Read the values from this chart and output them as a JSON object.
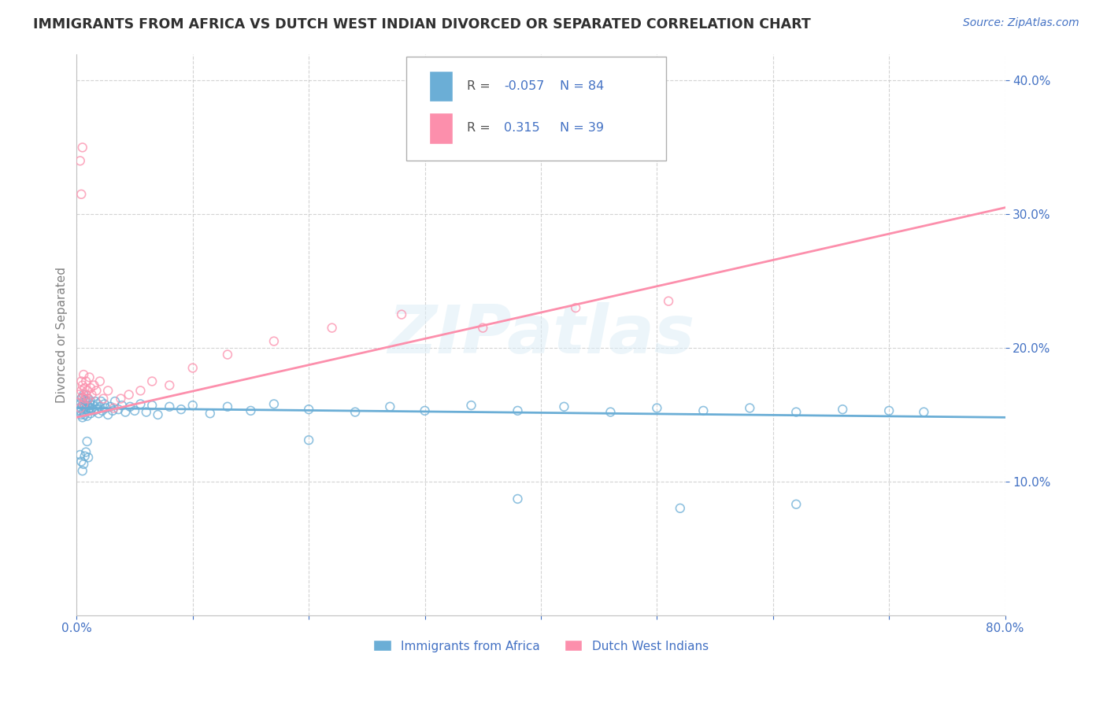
{
  "title": "IMMIGRANTS FROM AFRICA VS DUTCH WEST INDIAN DIVORCED OR SEPARATED CORRELATION CHART",
  "source": "Source: ZipAtlas.com",
  "ylabel": "Divorced or Separated",
  "legend_label1": "Immigrants from Africa",
  "legend_label2": "Dutch West Indians",
  "R1": -0.057,
  "N1": 84,
  "R2": 0.315,
  "N2": 39,
  "color_blue": "#6baed6",
  "color_pink": "#fc8fac",
  "color_title": "#303030",
  "color_source": "#4472c4",
  "color_axis_label": "#808080",
  "color_tick": "#4472c4",
  "color_grid": "#c8c8c8",
  "xmin": 0.0,
  "xmax": 0.8,
  "ymin": 0.0,
  "ymax": 0.42,
  "yticks": [
    0.1,
    0.2,
    0.3,
    0.4
  ],
  "watermark": "ZIPatlas",
  "blue_line_x": [
    0.0,
    0.8
  ],
  "blue_line_y": [
    0.155,
    0.148
  ],
  "pink_line_x": [
    0.0,
    0.8
  ],
  "pink_line_y": [
    0.148,
    0.305
  ],
  "blue_x": [
    0.002,
    0.003,
    0.003,
    0.004,
    0.004,
    0.004,
    0.005,
    0.005,
    0.005,
    0.006,
    0.006,
    0.006,
    0.007,
    0.007,
    0.007,
    0.008,
    0.008,
    0.009,
    0.009,
    0.01,
    0.01,
    0.011,
    0.011,
    0.012,
    0.012,
    0.013,
    0.014,
    0.015,
    0.016,
    0.017,
    0.018,
    0.019,
    0.02,
    0.021,
    0.022,
    0.024,
    0.025,
    0.027,
    0.029,
    0.031,
    0.033,
    0.036,
    0.039,
    0.042,
    0.046,
    0.05,
    0.055,
    0.06,
    0.065,
    0.07,
    0.08,
    0.09,
    0.1,
    0.115,
    0.13,
    0.15,
    0.17,
    0.2,
    0.24,
    0.27,
    0.3,
    0.34,
    0.38,
    0.42,
    0.46,
    0.5,
    0.54,
    0.58,
    0.62,
    0.66,
    0.7,
    0.73,
    0.003,
    0.004,
    0.005,
    0.006,
    0.007,
    0.008,
    0.009,
    0.01,
    0.2,
    0.38,
    0.52,
    0.62
  ],
  "blue_y": [
    0.155,
    0.153,
    0.158,
    0.15,
    0.155,
    0.162,
    0.148,
    0.157,
    0.163,
    0.152,
    0.158,
    0.165,
    0.15,
    0.156,
    0.161,
    0.154,
    0.16,
    0.149,
    0.157,
    0.153,
    0.162,
    0.155,
    0.159,
    0.151,
    0.16,
    0.155,
    0.157,
    0.153,
    0.16,
    0.154,
    0.158,
    0.151,
    0.156,
    0.16,
    0.153,
    0.158,
    0.155,
    0.15,
    0.156,
    0.153,
    0.16,
    0.154,
    0.157,
    0.152,
    0.156,
    0.153,
    0.158,
    0.152,
    0.157,
    0.15,
    0.156,
    0.154,
    0.157,
    0.151,
    0.156,
    0.153,
    0.158,
    0.154,
    0.152,
    0.156,
    0.153,
    0.157,
    0.153,
    0.156,
    0.152,
    0.155,
    0.153,
    0.155,
    0.152,
    0.154,
    0.153,
    0.152,
    0.12,
    0.115,
    0.108,
    0.113,
    0.119,
    0.122,
    0.13,
    0.118,
    0.131,
    0.087,
    0.08,
    0.083
  ],
  "pink_x": [
    0.002,
    0.003,
    0.004,
    0.004,
    0.005,
    0.005,
    0.006,
    0.006,
    0.007,
    0.007,
    0.008,
    0.008,
    0.009,
    0.01,
    0.011,
    0.012,
    0.013,
    0.015,
    0.017,
    0.02,
    0.023,
    0.027,
    0.032,
    0.038,
    0.045,
    0.055,
    0.065,
    0.08,
    0.1,
    0.13,
    0.17,
    0.22,
    0.28,
    0.35,
    0.43,
    0.51,
    0.003,
    0.004,
    0.005
  ],
  "pink_y": [
    0.165,
    0.155,
    0.168,
    0.175,
    0.163,
    0.172,
    0.158,
    0.18,
    0.162,
    0.17,
    0.165,
    0.175,
    0.168,
    0.162,
    0.178,
    0.17,
    0.165,
    0.172,
    0.168,
    0.175,
    0.162,
    0.168,
    0.155,
    0.162,
    0.165,
    0.168,
    0.175,
    0.172,
    0.185,
    0.195,
    0.205,
    0.215,
    0.225,
    0.215,
    0.23,
    0.235,
    0.34,
    0.315,
    0.35
  ]
}
